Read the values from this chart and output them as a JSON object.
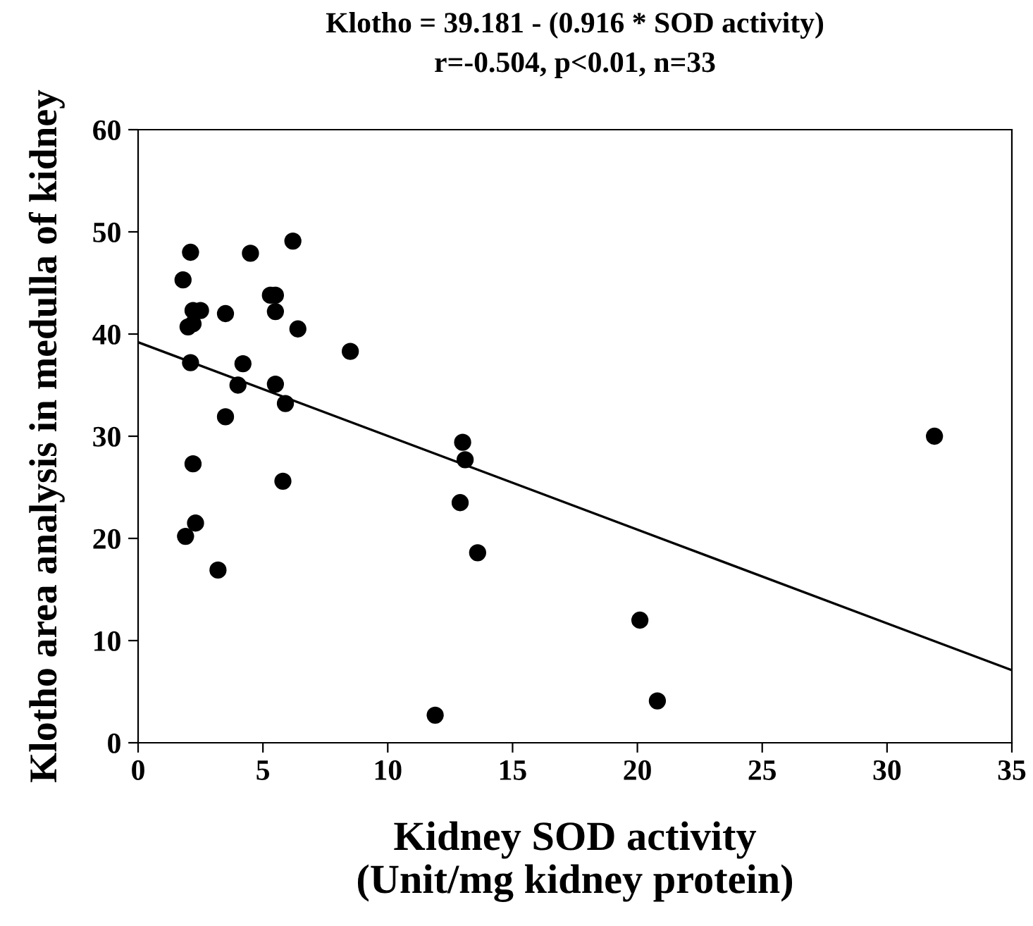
{
  "chart_data": {
    "type": "scatter",
    "title": "Klotho = 39.181 - (0.916 * SOD activity)",
    "subtitle": "r=-0.504, p<0.01, n=33",
    "xlabel": "Kidney SOD activity\n(Unit/mg kidney protein)",
    "ylabel": "Klotho area analysis in medulla of kidney",
    "xlim": [
      0,
      35
    ],
    "ylim": [
      0,
      60
    ],
    "xticks": [
      0,
      5,
      10,
      15,
      20,
      25,
      30,
      35
    ],
    "yticks": [
      0,
      10,
      20,
      30,
      40,
      50,
      60
    ],
    "grid": false,
    "legend": false,
    "series": [
      {
        "marker": "circle",
        "color": "#000000",
        "x": [
          1.8,
          2.1,
          2.0,
          2.2,
          2.2,
          2.5,
          2.1,
          2.2,
          1.9,
          2.3,
          3.2,
          3.5,
          3.5,
          4.0,
          4.2,
          4.5,
          5.3,
          5.5,
          5.5,
          5.5,
          5.8,
          5.9,
          6.2,
          6.4,
          8.5,
          11.9,
          12.9,
          13.0,
          13.1,
          13.6,
          20.1,
          20.8,
          31.9
        ],
        "values": [
          45.3,
          48.0,
          40.7,
          41.0,
          42.3,
          42.3,
          37.2,
          27.3,
          20.2,
          21.5,
          16.9,
          42.0,
          31.9,
          35.0,
          37.1,
          47.9,
          43.8,
          43.8,
          42.2,
          35.1,
          25.6,
          33.2,
          49.1,
          40.5,
          38.3,
          2.7,
          23.5,
          29.4,
          27.7,
          18.6,
          12.0,
          4.1,
          30.0
        ]
      },
      {
        "type": "line",
        "color": "#000000",
        "x": [
          0,
          35
        ],
        "values": [
          39.2,
          7.1
        ]
      }
    ]
  }
}
